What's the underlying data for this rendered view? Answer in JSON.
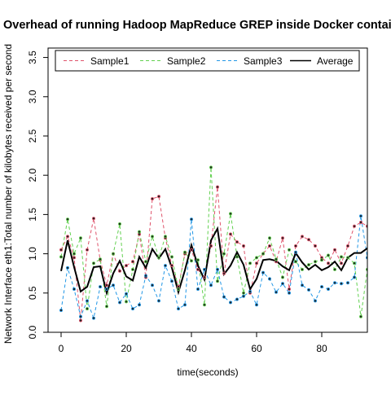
{
  "chart_data": {
    "type": "line",
    "title": "Overhead of running Hadoop MapReduce GREP inside Docker containers",
    "xlabel": "time(seconds)",
    "ylabel": "Network Interface eth1:Total number of kilobytes received per second",
    "xlim": [
      -4,
      94
    ],
    "ylim": [
      0,
      3.62
    ],
    "x_ticks": [
      0,
      20,
      40,
      60,
      80
    ],
    "x_tick_labels": [
      "0",
      "20",
      "40",
      "60",
      "80"
    ],
    "y_ticks": [
      0,
      0.5,
      1,
      1.5,
      2,
      2.5,
      3,
      3.5
    ],
    "y_tick_labels": [
      "0.0",
      "0.5",
      "1.0",
      "1.5",
      "2.0",
      "2.5",
      "3.0",
      "3.5"
    ],
    "grid": false,
    "legend_position": "top",
    "x": [
      0,
      2,
      4,
      6,
      8,
      10,
      12,
      14,
      16,
      18,
      20,
      22,
      24,
      26,
      28,
      30,
      32,
      34,
      36,
      38,
      40,
      42,
      44,
      46,
      48,
      50,
      52,
      54,
      56,
      58,
      60,
      62,
      64,
      66,
      68,
      70,
      72,
      74,
      76,
      78,
      80,
      82,
      84,
      86,
      88,
      90,
      92,
      94
    ],
    "series": [
      {
        "name": "Sample1",
        "color": "#DF536B",
        "dash": "dashed",
        "values": [
          1.05,
          1.22,
          0.95,
          0.15,
          1.05,
          1.45,
          0.92,
          0.6,
          1.0,
          0.78,
          0.85,
          0.9,
          1.25,
          0.7,
          1.7,
          1.73,
          1.2,
          0.85,
          0.58,
          1.0,
          1.05,
          0.8,
          0.7,
          1.1,
          1.85,
          0.75,
          1.25,
          1.15,
          1.1,
          0.5,
          0.88,
          1.0,
          1.1,
          0.9,
          1.2,
          0.55,
          1.1,
          1.22,
          1.18,
          1.1,
          0.95,
          0.88,
          1.05,
          0.88,
          1.1,
          1.35,
          1.4,
          1.35
        ]
      },
      {
        "name": "Sample2",
        "color": "#61D04F",
        "dash": "dashed",
        "values": [
          0.96,
          1.44,
          1.0,
          1.2,
          0.3,
          0.88,
          0.93,
          0.33,
          1.0,
          1.38,
          0.39,
          0.8,
          1.28,
          0.9,
          1.22,
          0.95,
          1.22,
          0.96,
          0.55,
          1.02,
          0.91,
          0.92,
          0.35,
          2.1,
          0.65,
          1.0,
          1.51,
          0.96,
          0.5,
          0.88,
          0.95,
          1.0,
          1.2,
          0.93,
          0.7,
          1.05,
          0.9,
          0.8,
          0.86,
          0.9,
          0.92,
          0.98,
          0.8,
          0.96,
          0.95,
          0.88,
          0.2,
          0.8
        ]
      },
      {
        "name": "Sample3",
        "color": "#2297E6",
        "dash": "dashed",
        "values": [
          0.28,
          0.82,
          0.55,
          0.2,
          0.4,
          0.18,
          0.58,
          0.55,
          0.6,
          0.38,
          0.49,
          0.3,
          0.35,
          0.72,
          0.6,
          0.4,
          0.85,
          0.65,
          0.3,
          0.35,
          1.44,
          0.55,
          0.8,
          0.6,
          0.8,
          0.45,
          0.38,
          0.42,
          0.46,
          0.52,
          0.35,
          0.76,
          0.68,
          0.51,
          0.62,
          0.5,
          1.02,
          0.6,
          0.54,
          0.4,
          0.58,
          0.55,
          0.63,
          0.62,
          0.63,
          0.7,
          1.48,
          0.95
        ]
      },
      {
        "name": "Average",
        "color": "#000000",
        "dash": "solid",
        "values": [
          0.78,
          1.17,
          0.83,
          0.52,
          0.58,
          0.83,
          0.84,
          0.5,
          0.75,
          0.91,
          0.71,
          0.66,
          0.96,
          0.82,
          1.06,
          0.94,
          1.06,
          0.82,
          0.51,
          0.79,
          1.11,
          0.85,
          0.67,
          1.17,
          1.32,
          0.74,
          0.85,
          1.02,
          0.86,
          0.55,
          0.68,
          0.92,
          0.93,
          0.91,
          0.84,
          0.79,
          1.01,
          0.89,
          0.8,
          0.86,
          0.79,
          0.83,
          0.9,
          0.79,
          0.95,
          1.01,
          1.01,
          1.07
        ]
      }
    ]
  }
}
